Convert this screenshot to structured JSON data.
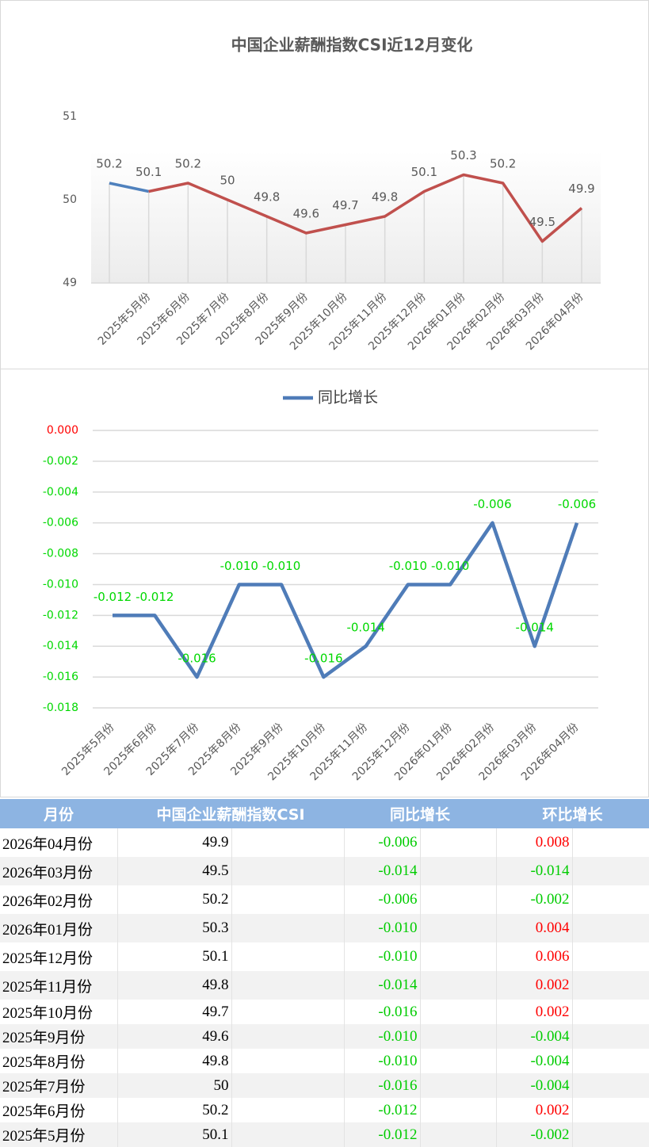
{
  "chart_data": [
    {
      "type": "line",
      "title": "中国企业薪酬指数CSI近12月变化",
      "categories": [
        null,
        "2025年5月份",
        "2025年6月份",
        "2025年7月份",
        "2025年8月份",
        "2025年9月份",
        "2025年10月份",
        "2025年11月份",
        "2025年12月份",
        "2026年01月份",
        "2026年02月份",
        "2026年03月份",
        "2026年04月份"
      ],
      "series": [
        {
          "color": "#4f81bd",
          "values": [
            50.2,
            50.1,
            null,
            null,
            null,
            null,
            null,
            null,
            null,
            null,
            null,
            null,
            null
          ]
        },
        {
          "color": "#c0504d",
          "values": [
            null,
            50.1,
            50.2,
            50,
            49.8,
            49.6,
            49.7,
            49.8,
            50.1,
            50.3,
            50.2,
            49.5,
            49.9
          ]
        }
      ],
      "ylim": [
        49,
        51
      ],
      "yticks": [
        49,
        50,
        51
      ],
      "grid": false,
      "drop_lines": true,
      "label_color": "#595959"
    },
    {
      "type": "line",
      "categories": [
        "2025年5月份",
        "2025年6月份",
        "2025年7月份",
        "2025年8月份",
        "2025年9月份",
        "2025年10月份",
        "2025年11月份",
        "2025年12月份",
        "2026年01月份",
        "2026年02月份",
        "2026年03月份",
        "2026年04月份"
      ],
      "series": [
        {
          "name": "同比增长",
          "color": "#4f7cb8",
          "values": [
            -0.012,
            -0.012,
            -0.016,
            -0.01,
            -0.01,
            -0.016,
            -0.014,
            -0.01,
            -0.01,
            -0.006,
            -0.014,
            -0.006
          ],
          "value_labels": [
            "-0.012",
            "-0.012",
            "-0.016",
            "-0.010",
            "-0.010",
            "-0.016",
            "-0.014",
            "-0.010",
            "-0.010",
            "-0.006",
            "-0.014",
            "-0.006"
          ]
        }
      ],
      "ylim": [
        -0.018,
        0
      ],
      "yticks": [
        {
          "value": 0,
          "label": "0.000"
        },
        {
          "value": -0.002,
          "label": "-0.002"
        },
        {
          "value": -0.004,
          "label": "-0.004"
        },
        {
          "value": -0.006,
          "label": "-0.006"
        },
        {
          "value": -0.008,
          "label": "-0.008"
        },
        {
          "value": -0.01,
          "label": "-0.010"
        },
        {
          "value": -0.012,
          "label": "-0.012"
        },
        {
          "value": -0.014,
          "label": "-0.014"
        },
        {
          "value": -0.016,
          "label": "-0.016"
        },
        {
          "value": -0.018,
          "label": "-0.018"
        }
      ],
      "ytick_colors": [
        "#ff0000",
        "#00d800",
        "#00d800",
        "#00d800",
        "#00d800",
        "#00d800",
        "#00d800",
        "#00d800",
        "#00d800",
        "#00d800"
      ],
      "grid": true,
      "legend": "top",
      "label_color": "#00d800"
    }
  ],
  "table": {
    "header": [
      "月份",
      "中国企业薪酬指数CSI",
      "同比增长",
      "环比增长"
    ],
    "positive_color": "#ff0000",
    "negative_color": "#00cc00",
    "rows": [
      [
        "2026年04月份",
        "49.9",
        "-0.006",
        "0.008"
      ],
      [
        "2026年03月份",
        "49.5",
        "-0.014",
        "-0.014"
      ],
      [
        "2026年02月份",
        "50.2",
        "-0.006",
        "-0.002"
      ],
      [
        "2026年01月份",
        "50.3",
        "-0.010",
        "0.004"
      ],
      [
        "2025年12月份",
        "50.1",
        "-0.010",
        "0.006"
      ],
      [
        "2025年11月份",
        "49.8",
        "-0.014",
        "0.002"
      ],
      [
        "2025年10月份",
        "49.7",
        "-0.016",
        "0.002"
      ],
      [
        "2025年9月份",
        "49.6",
        "-0.010",
        "-0.004"
      ],
      [
        "2025年8月份",
        "49.8",
        "-0.010",
        "-0.004"
      ],
      [
        "2025年7月份",
        "50",
        "-0.016",
        "-0.004"
      ],
      [
        "2025年6月份",
        "50.2",
        "-0.012",
        "0.002"
      ],
      [
        "2025年5月份",
        "50.1",
        "-0.012",
        "-0.002"
      ]
    ]
  }
}
